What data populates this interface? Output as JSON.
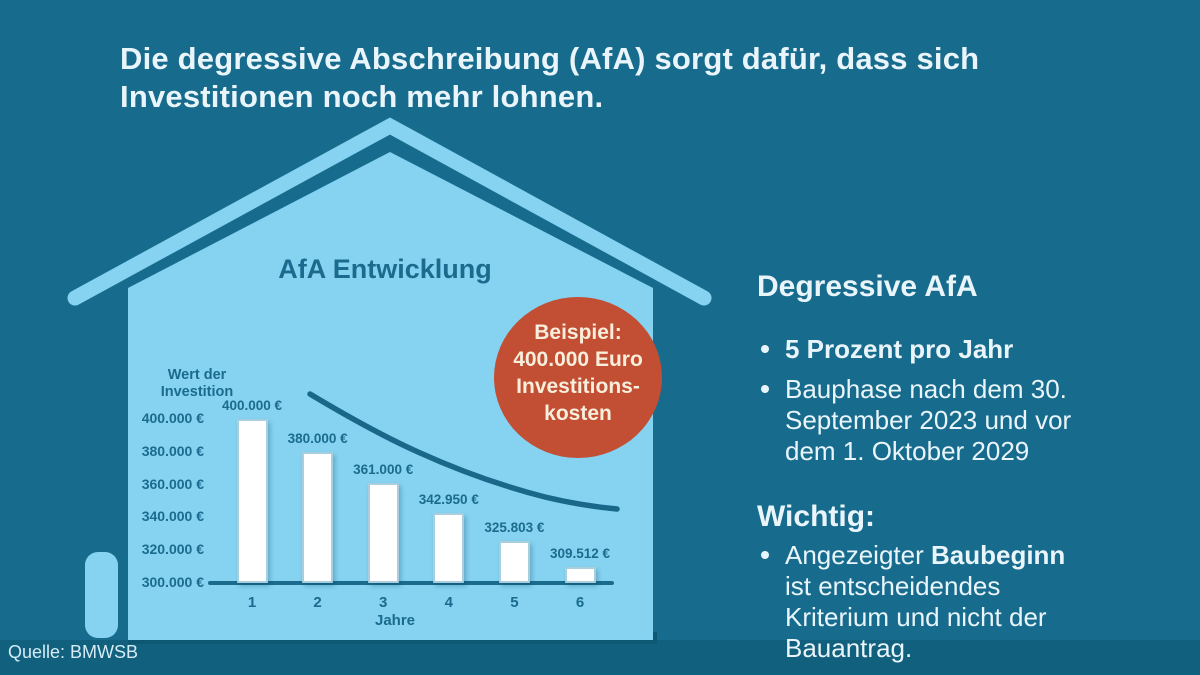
{
  "colors": {
    "background": "#176C8E",
    "footer_band": "#10607E",
    "house_light_blue": "#85D3F0",
    "chart_ink": "#1A6B8D",
    "bar_fill": "#FFFFFF",
    "bar_border": "#A9CEDE",
    "badge_red": "#C24E33",
    "badge_text": "#F8EEDC",
    "light_text": "#E9F5FA"
  },
  "header": {
    "title_line1": "Die degressive Abschreibung (AfA) sorgt dafür, dass sich",
    "title_line2": "Investitionen noch mehr lohnen."
  },
  "badge": {
    "lines": [
      "Beispiel:",
      "400.000 Euro",
      "Investitions-",
      "kosten"
    ]
  },
  "chart_data": {
    "type": "bar",
    "title": "AfA Entwicklung",
    "xlabel": "Jahre",
    "ylabel": "Wert der Investition",
    "categories": [
      "1",
      "2",
      "3",
      "4",
      "5",
      "6"
    ],
    "values": [
      400000,
      380000,
      361000,
      342950,
      325803,
      309512
    ],
    "bar_labels": [
      "400.000 €",
      "380.000 €",
      "361.000 €",
      "342.950 €",
      "325.803 €",
      "309.512 €"
    ],
    "yticks": [
      {
        "value": 400000,
        "label": "400.000 €"
      },
      {
        "value": 380000,
        "label": "380.000 €"
      },
      {
        "value": 360000,
        "label": "360.000 €"
      },
      {
        "value": 340000,
        "label": "340.000 €"
      },
      {
        "value": 320000,
        "label": "320.000 €"
      },
      {
        "value": 300000,
        "label": "300.000 €"
      }
    ],
    "ylim": [
      300000,
      400000
    ],
    "grid": false,
    "legend": "none",
    "annotations": [
      "declining trend curve over bars",
      "Beispiel: 400.000 Euro Investitionskosten"
    ]
  },
  "right_panel": {
    "heading": "Degressive AfA",
    "bullet1": "5 Prozent pro Jahr",
    "bullet2": "Bauphase nach dem 30. September 2023 und vor dem 1. Oktober 2029",
    "wichtig_heading": "Wichtig:",
    "wichtig_bullet": {
      "pre": "Angezeigter ",
      "bold": "Baubeginn",
      "post": " ist entscheidendes Kriterium und nicht der Bauantrag."
    }
  },
  "footer": {
    "source": "Quelle: BMWSB"
  }
}
